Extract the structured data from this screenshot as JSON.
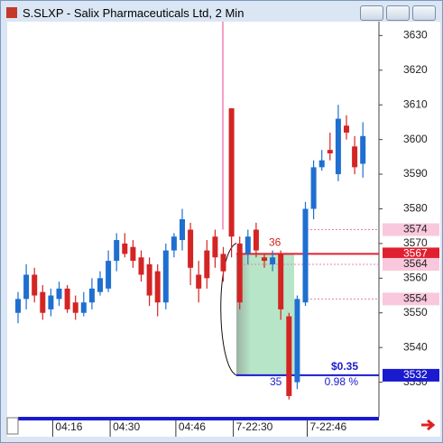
{
  "window_title": "S.SLXP - Salix Pharmaceuticals Ltd, 2 Min",
  "chart_data": {
    "type": "candlestick",
    "categories": [
      null,
      null,
      null,
      null,
      "04:16",
      null,
      null,
      null,
      null,
      null,
      null,
      "04:30",
      null,
      null,
      null,
      null,
      null,
      null,
      null,
      "04:46",
      null,
      null,
      null,
      null,
      null,
      null,
      "7-22:30",
      null,
      null,
      null,
      null,
      null,
      null,
      null,
      null,
      "7-22:46",
      null,
      null,
      null,
      null,
      null,
      null,
      null
    ],
    "open": [
      3550,
      3554,
      3561,
      3556,
      3551,
      3554,
      3557,
      3553,
      3550,
      3553,
      3556,
      3557,
      3565,
      3570,
      3569,
      3566,
      3564,
      3562,
      3553,
      3568,
      3571,
      3574,
      3561,
      3568,
      3572,
      3567,
      3609,
      3570,
      3567,
      3574,
      3566,
      3564,
      3567,
      3549,
      3530,
      3553,
      3580,
      3592,
      3597,
      3590,
      3604,
      3598,
      3593
    ],
    "high": [
      3556,
      3564,
      3563,
      3558,
      3557,
      3559,
      3558,
      3555,
      3556,
      3560,
      3562,
      3568,
      3573,
      3573,
      3571,
      3568,
      3566,
      3564,
      3570,
      3573,
      3580,
      3576,
      3565,
      3571,
      3574,
      3569,
      3609,
      3572,
      3574,
      3576,
      3567,
      3568,
      3568,
      3550,
      3555,
      3582,
      3594,
      3597,
      3602,
      3610,
      3607,
      3601,
      3605
    ],
    "low": [
      3547,
      3551,
      3553,
      3548,
      3549,
      3552,
      3550,
      3548,
      3549,
      3551,
      3555,
      3556,
      3562,
      3566,
      3563,
      3559,
      3552,
      3549,
      3551,
      3566,
      3568,
      3558,
      3553,
      3557,
      3563,
      3559,
      3566,
      3551,
      3564,
      3566,
      3563,
      3562,
      3548,
      3525,
      3528,
      3552,
      3577,
      3591,
      3594,
      3588,
      3600,
      3590,
      3589
    ],
    "close": [
      3554,
      3561,
      3555,
      3550,
      3555,
      3557,
      3551,
      3550,
      3553,
      3557,
      3560,
      3565,
      3571,
      3567,
      3565,
      3561,
      3555,
      3553,
      3568,
      3572,
      3577,
      3563,
      3557,
      3560,
      3566,
      3562,
      3572,
      3553,
      3572,
      3568,
      3565,
      3566,
      3551,
      3526,
      3554,
      3580,
      3592,
      3594,
      3596,
      3606,
      3602,
      3592,
      3601
    ],
    "up_color": "#1f6fd0",
    "down_color": "#d42424",
    "ylim": [
      3520,
      3634
    ],
    "yticks": [
      3530,
      3540,
      3550,
      3560,
      3570,
      3580,
      3590,
      3600,
      3610,
      3620,
      3630
    ],
    "price_tags": [
      {
        "value": 3574,
        "color": "#f9c8dc",
        "text_color": "#222222",
        "line": "dashed"
      },
      {
        "value": 3567,
        "color": "#e02030",
        "text_color": "#ffffff",
        "line": "solid"
      },
      {
        "value": 3564,
        "color": "#f9c8dc",
        "text_color": "#222222",
        "line": "dashed"
      },
      {
        "value": 3554,
        "color": "#f9c8dc",
        "text_color": "#222222",
        "line": "dashed"
      },
      {
        "value": 3532,
        "color": "#1a1ad0",
        "text_color": "#ffffff",
        "line": "solid"
      }
    ],
    "annotations": {
      "entry_count": "36",
      "exit_count": "35",
      "gain": "$0.35",
      "gain_pct": "0.98 %"
    }
  }
}
